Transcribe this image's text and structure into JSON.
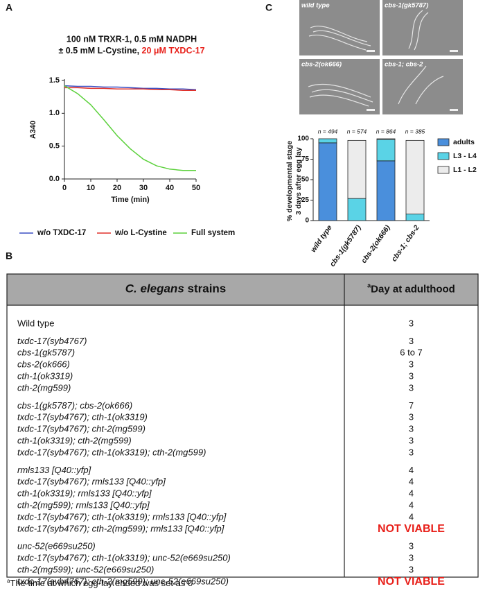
{
  "panels": [
    "A",
    "B",
    "C"
  ],
  "chart_data": [
    {
      "type": "line",
      "title": [
        "100 nM TRXR-1, 0.5 mM NADPH",
        "± 0.5 mM L-Cystine,",
        "20 μM TXDC-17"
      ],
      "title_highlight_color": "#e8201a",
      "x_label": "Time (min)",
      "y_label": "A340",
      "x": [
        0,
        5,
        10,
        15,
        20,
        25,
        30,
        35,
        40,
        45,
        50
      ],
      "series": [
        {
          "name": "w/o TXDC-17",
          "color": "#3a4fc4",
          "values": [
            1.42,
            1.41,
            1.41,
            1.4,
            1.4,
            1.39,
            1.38,
            1.38,
            1.37,
            1.37,
            1.36
          ]
        },
        {
          "name": "w/o L-Cystine",
          "color": "#e0302a",
          "values": [
            1.39,
            1.39,
            1.38,
            1.38,
            1.37,
            1.37,
            1.37,
            1.36,
            1.36,
            1.35,
            1.35
          ]
        },
        {
          "name": "Full system",
          "color": "#5cd13c",
          "values": [
            1.42,
            1.3,
            1.13,
            0.9,
            0.66,
            0.46,
            0.3,
            0.2,
            0.15,
            0.13,
            0.13
          ]
        }
      ],
      "xlim": [
        0,
        50
      ],
      "xticks": [
        0,
        10,
        20,
        30,
        40,
        50
      ],
      "ylim": [
        0,
        1.5
      ],
      "yticks": [
        {
          "value": 0,
          "label": "0.0"
        },
        0.5,
        {
          "value": 1,
          "label": "1.0"
        },
        1.5
      ],
      "legend": "bottom"
    },
    {
      "type": "stacked_bar",
      "y_label": [
        "% developmental stage",
        "3 days after egg lay"
      ],
      "categories": [
        "wild type",
        "cbs-1(gk5787)",
        "cbs-2(ok666)",
        "cbs-1; cbs-2"
      ],
      "annotations": [
        "n = 494",
        "n = 574",
        "n = 864",
        "n = 385"
      ],
      "series": [
        {
          "name": "adults",
          "color": "#4a8fdc",
          "values": [
            95,
            0,
            73,
            0
          ]
        },
        {
          "name": "L3 - L4",
          "color": "#5ad3e6",
          "values": [
            5,
            27,
            26,
            8
          ]
        },
        {
          "name": "L1 - L2",
          "color": "#ececec",
          "values": [
            0,
            71,
            1,
            90
          ]
        }
      ],
      "ylim": [
        0,
        100
      ],
      "yticks": [
        0,
        25,
        50,
        75,
        100
      ],
      "legend": "right"
    }
  ],
  "images": [
    "wild type",
    "cbs-1(gk5787)",
    "cbs-2(ok666)",
    "cbs-1; cbs-2"
  ],
  "table": {
    "header": {
      "strain_italic": "C. elegans",
      "strain_rest": "strains",
      "marker": "a",
      "day": "Day at adulthood"
    },
    "groups": [
      [
        {
          "strain": "Wild type",
          "day": "3"
        }
      ],
      [
        {
          "strain": "txdc-17(syb4767)",
          "day": "3"
        },
        {
          "strain": "cbs-1(gk5787)",
          "day": "6 to 7"
        },
        {
          "strain": "cbs-2(ok666)",
          "day": "3"
        },
        {
          "strain": "cth-1(ok3319)",
          "day": "3"
        },
        {
          "strain": "cth-2(mg599)",
          "day": "3"
        }
      ],
      [
        {
          "strain": "cbs-1(gk5787); cbs-2(ok666)",
          "day": "7"
        },
        {
          "strain": "txdc-17(syb4767); cth-1(ok3319)",
          "day": "3"
        },
        {
          "strain": "txdc-17(syb4767); cht-2(mg599)",
          "day": "3"
        },
        {
          "strain": "cth-1(ok3319); cth-2(mg599)",
          "day": "3"
        },
        {
          "strain": "txdc-17(syb4767); cth-1(ok3319); cth-2(mg599)",
          "day": "3"
        }
      ],
      [
        {
          "strain": "rmls133 [Q40::yfp]",
          "day": "4"
        },
        {
          "strain": "txdc-17(syb4767); rmls133 [Q40::yfp]",
          "day": "4"
        },
        {
          "strain": "cth-1(ok3319); rmls133 [Q40::yfp]",
          "day": "4"
        },
        {
          "strain": "cth-2(mg599); rmls133 [Q40::yfp]",
          "day": "4"
        },
        {
          "strain": "txdc-17(syb4767); cth-1(ok3319); rmls133 [Q40::yfp]",
          "day": "4"
        },
        {
          "strain": "txdc-17(syb4767); cth-2(mg599); rmls133 [Q40::yfp]",
          "day": "NOT VIABLE",
          "day_color": "#e8201a"
        }
      ],
      [
        {
          "strain": "unc-52(e669su250)",
          "day": "3"
        },
        {
          "strain": "txdc-17(syb4767); cth-1(ok3319); unc-52(e669su250)",
          "day": "3"
        },
        {
          "strain": "cth-2(mg599); unc-52(e669su250)",
          "day": "3"
        },
        {
          "strain": "txdc-17(syb4767); cth-2(mg599); unc-52(e669su250)",
          "day": "NOT VIABLE",
          "day_color": "#e8201a"
        }
      ]
    ],
    "footnote": {
      "marker": "a",
      "text": "The time at which egg-lay ended was set as 0"
    }
  }
}
